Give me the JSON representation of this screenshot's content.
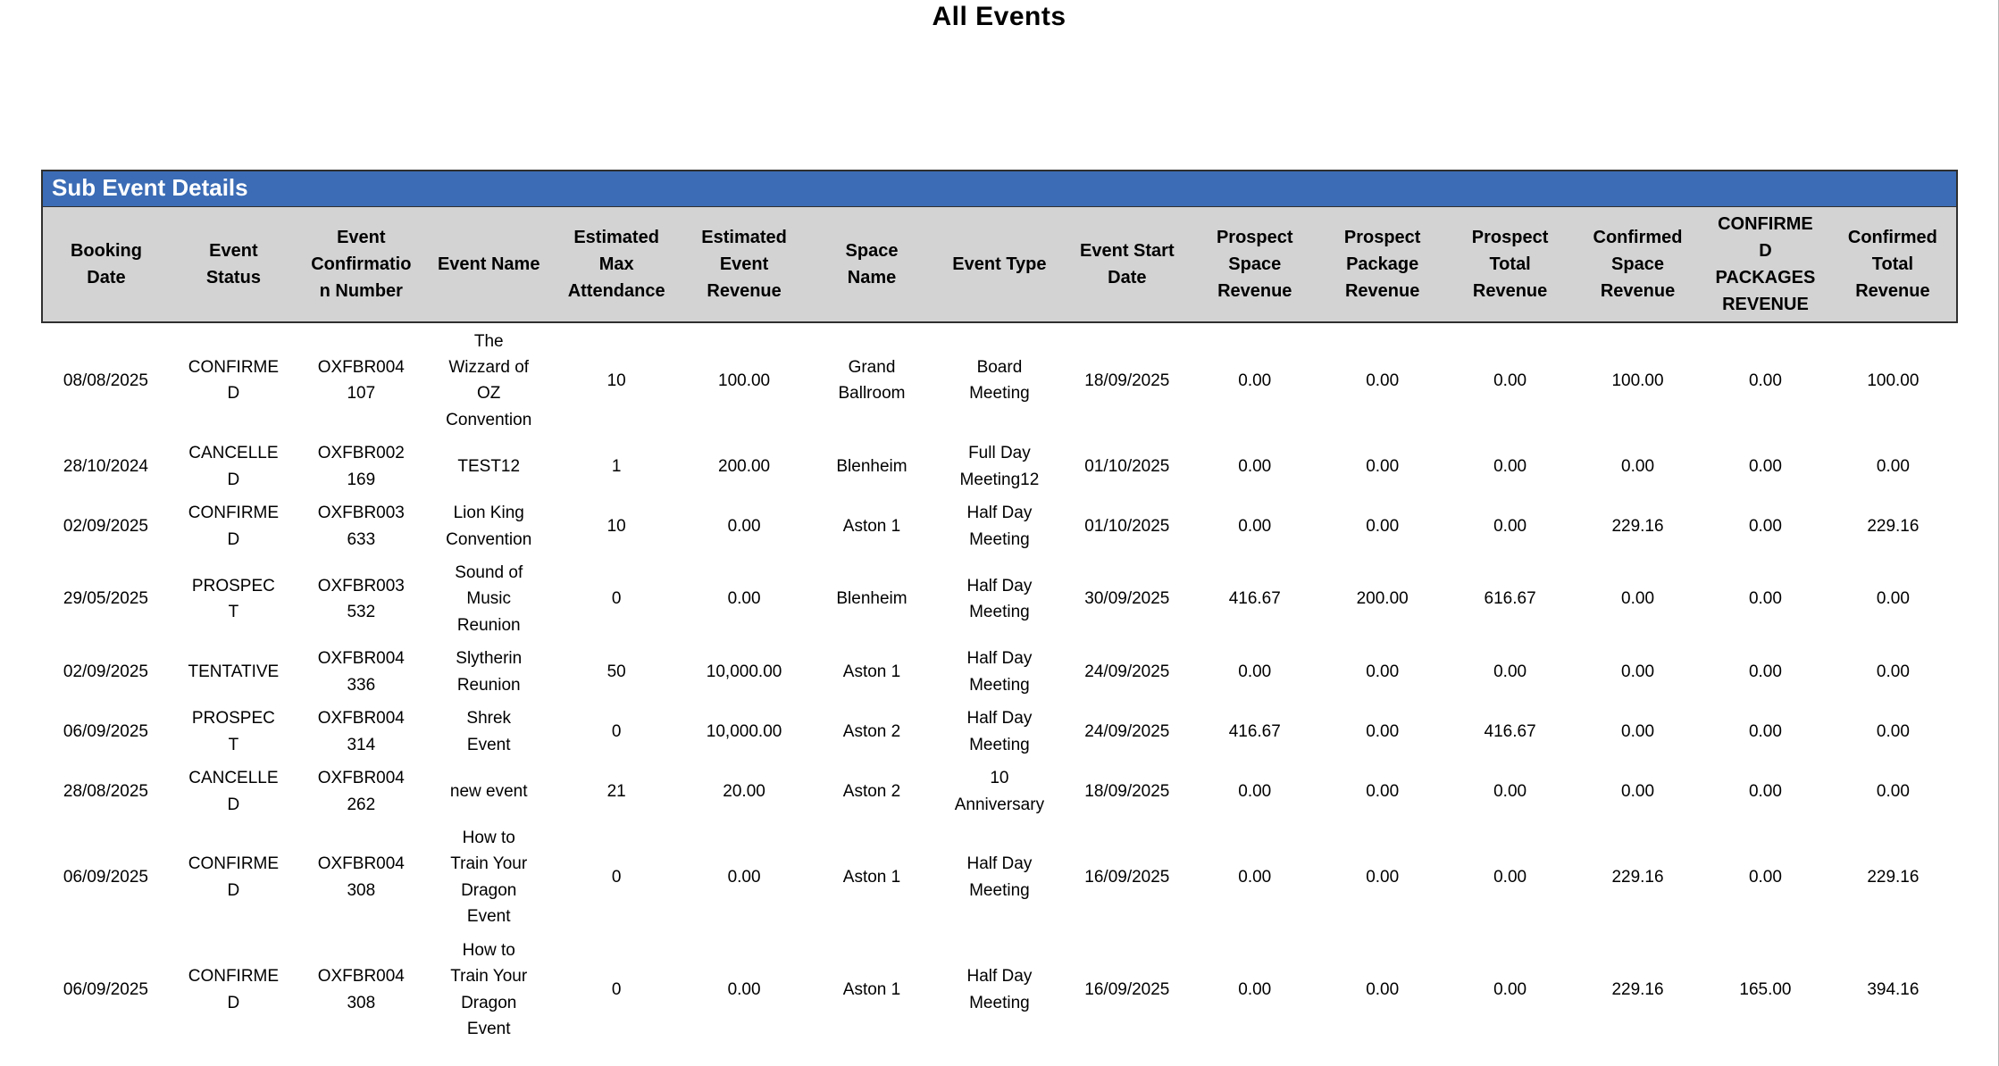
{
  "page": {
    "title": "All Events"
  },
  "section": {
    "title": "Sub Event Details"
  },
  "colors": {
    "section_header_bg": "#3b6cb5",
    "section_header_text": "#ffffff",
    "column_header_bg": "#d3d3d3",
    "header_border": "#2f2f2f",
    "body_text": "#000000"
  },
  "table": {
    "columns": [
      "Booking Date",
      "Event Status",
      "Event Confirmation Number",
      "Event Name",
      "Estimated Max Attendance",
      "Estimated Event Revenue",
      "Space Name",
      "Event Type",
      "Event Start Date",
      "Prospect Space Revenue",
      "Prospect Package Revenue",
      "Prospect Total Revenue",
      "Confirmed Space Revenue",
      "CONFIRMED PACKAGES REVENUE",
      "Confirmed Total Revenue"
    ],
    "rows": [
      [
        "08/08/2025",
        "CONFIRMED",
        "OXFBR004107",
        "The Wizzard of OZ Convention",
        "10",
        "100.00",
        "Grand Ballroom",
        "Board Meeting",
        "18/09/2025",
        "0.00",
        "0.00",
        "0.00",
        "100.00",
        "0.00",
        "100.00"
      ],
      [
        "28/10/2024",
        "CANCELLED",
        "OXFBR002169",
        "TEST12",
        "1",
        "200.00",
        "Blenheim",
        "Full Day Meeting12",
        "01/10/2025",
        "0.00",
        "0.00",
        "0.00",
        "0.00",
        "0.00",
        "0.00"
      ],
      [
        "02/09/2025",
        "CONFIRMED",
        "OXFBR003633",
        "Lion King Convention",
        "10",
        "0.00",
        "Aston 1",
        "Half Day Meeting",
        "01/10/2025",
        "0.00",
        "0.00",
        "0.00",
        "229.16",
        "0.00",
        "229.16"
      ],
      [
        "29/05/2025",
        "PROSPECT",
        "OXFBR003532",
        "Sound of Music Reunion",
        "0",
        "0.00",
        "Blenheim",
        "Half Day Meeting",
        "30/09/2025",
        "416.67",
        "200.00",
        "616.67",
        "0.00",
        "0.00",
        "0.00"
      ],
      [
        "02/09/2025",
        "TENTATIVE",
        "OXFBR004336",
        "Slytherin Reunion",
        "50",
        "10,000.00",
        "Aston 1",
        "Half Day Meeting",
        "24/09/2025",
        "0.00",
        "0.00",
        "0.00",
        "0.00",
        "0.00",
        "0.00"
      ],
      [
        "06/09/2025",
        "PROSPECT",
        "OXFBR004314",
        "Shrek Event",
        "0",
        "10,000.00",
        "Aston 2",
        "Half Day Meeting",
        "24/09/2025",
        "416.67",
        "0.00",
        "416.67",
        "0.00",
        "0.00",
        "0.00"
      ],
      [
        "28/08/2025",
        "CANCELLED",
        "OXFBR004262",
        "new event",
        "21",
        "20.00",
        "Aston 2",
        "10 Anniversary",
        "18/09/2025",
        "0.00",
        "0.00",
        "0.00",
        "0.00",
        "0.00",
        "0.00"
      ],
      [
        "06/09/2025",
        "CONFIRMED",
        "OXFBR004308",
        "How to Train Your Dragon Event",
        "0",
        "0.00",
        "Aston 1",
        "Half Day Meeting",
        "16/09/2025",
        "0.00",
        "0.00",
        "0.00",
        "229.16",
        "0.00",
        "229.16"
      ],
      [
        "06/09/2025",
        "CONFIRMED",
        "OXFBR004308",
        "How to Train Your Dragon Event",
        "0",
        "0.00",
        "Aston 1",
        "Half Day Meeting",
        "16/09/2025",
        "0.00",
        "0.00",
        "0.00",
        "229.16",
        "165.00",
        "394.16"
      ]
    ]
  }
}
